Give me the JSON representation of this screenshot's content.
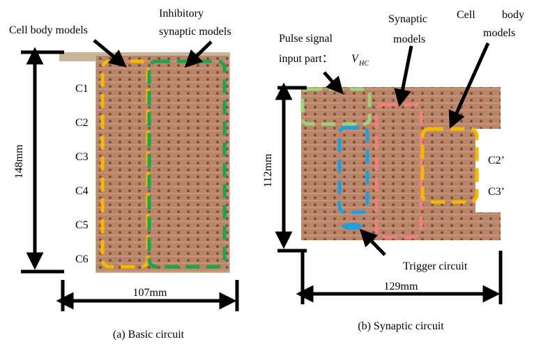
{
  "panel_a": {
    "cell_body_label": "Cell body models",
    "inhibitory_label": [
      "Inhibitory",
      "synaptic models"
    ],
    "rows": [
      "C1",
      "C2",
      "C3",
      "C4",
      "C5",
      "C6"
    ],
    "height": "148mm",
    "width": "107mm",
    "caption": "(a) Basic circuit"
  },
  "panel_b": {
    "pulse_input_label": [
      "Pulse signal",
      "input part："
    ],
    "v_symbol": "V",
    "v_subscript": "HC",
    "synaptic_label": [
      "Synaptic",
      "models"
    ],
    "cell_body_label": [
      "Cell",
      "body",
      "models"
    ],
    "rows": [
      "C2’",
      "C3’"
    ],
    "height": "112mm",
    "width": "129mm",
    "trigger_label": "Trigger circuit",
    "caption": "(b) Synaptic circuit"
  }
}
